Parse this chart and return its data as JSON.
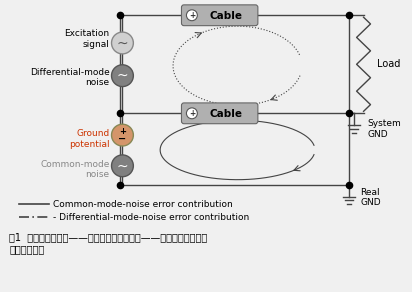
{
  "bg_color": "#f0f0f0",
  "title_text": "图1  两类主要噪声源——共模噪声和差模噪声——最终取决于其耦合\n进信号的方式",
  "legend_solid": "Common-mode-noise error contribution",
  "legend_dash": "Differential-mode-noise error contribution",
  "cable_label": "Cable",
  "load_label": "Load",
  "system_gnd_label": "System\nGND",
  "real_gnd_label": "Real\nGND",
  "excitation_label": "Excitation\nsignal",
  "diff_noise_label": "Differential-mode\nnoise",
  "ground_potential_label": "Ground\npotential",
  "common_noise_label": "Common-mode\nnoise",
  "line_color": "#444444",
  "cable_fill": "#b0b0b0",
  "circle_light_fill": "#d0d0d0",
  "circle_dark_fill": "#808080",
  "gnd_potential_fill": "#d4956a"
}
